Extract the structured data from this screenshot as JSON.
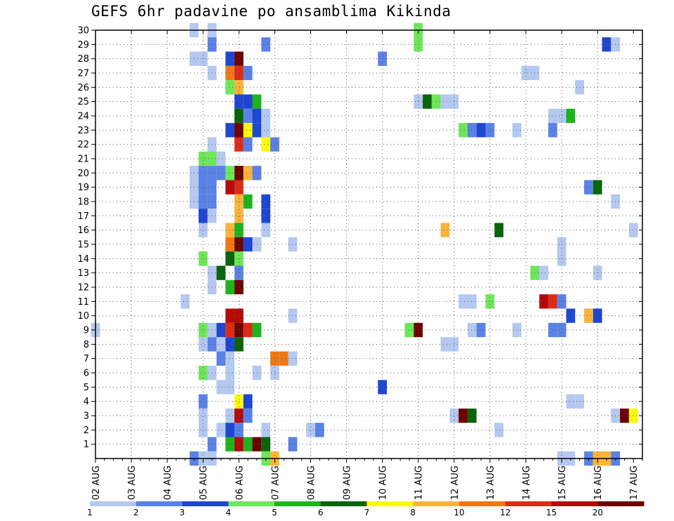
{
  "chart_data": {
    "type": "heatmap",
    "title": "GEFS 6hr padavine po ansamblima Kikinda",
    "x_tick_labels": [
      "02 AUG",
      "03 AUG",
      "04 AUG",
      "05 AUG",
      "06 AUG",
      "07 AUG",
      "08 AUG",
      "09 AUG",
      "10 AUG",
      "11 AUG",
      "12 AUG",
      "13 AUG",
      "14 AUG",
      "15 AUG",
      "16 AUG",
      "17 AUG"
    ],
    "y_tick_labels": [
      "1",
      "2",
      "3",
      "4",
      "5",
      "6",
      "7",
      "8",
      "9",
      "10",
      "11",
      "12",
      "13",
      "14",
      "15",
      "16",
      "17",
      "18",
      "19",
      "20",
      "21",
      "22",
      "23",
      "24",
      "25",
      "26",
      "27",
      "28",
      "29",
      "30"
    ],
    "x_axis": "time step (6-hourly, 4 per day) from 02 AUG",
    "y_axis": "ensemble member (0 to 30)",
    "steps_per_day": 4,
    "xlim": [
      0,
      61
    ],
    "ylim": [
      0,
      30
    ],
    "grid": true,
    "colorbar": {
      "colors": [
        "#b4c8f0",
        "#5a82e6",
        "#1e46d2",
        "#6ee65a",
        "#1eb41e",
        "#0a640a",
        "#fafa0a",
        "#fab43c",
        "#f07814",
        "#dc2d14",
        "#b40a0a",
        "#6e0000"
      ],
      "boundary_labels": [
        "1",
        "2",
        "3",
        "4",
        "5",
        "6",
        "7",
        "8",
        "10",
        "12",
        "15",
        "20"
      ]
    },
    "cells_legend": "each cell: [time step, member, colour class index 0-11]",
    "cells": [
      [
        11,
        30,
        0
      ],
      [
        13,
        30,
        0
      ],
      [
        36,
        30,
        3
      ],
      [
        13,
        29,
        1
      ],
      [
        19,
        29,
        1
      ],
      [
        36,
        29,
        3
      ],
      [
        57,
        29,
        2
      ],
      [
        58,
        29,
        0
      ],
      [
        11,
        28,
        0
      ],
      [
        12,
        28,
        0
      ],
      [
        15,
        28,
        2
      ],
      [
        16,
        28,
        11
      ],
      [
        32,
        28,
        1
      ],
      [
        13,
        27,
        0
      ],
      [
        15,
        27,
        8
      ],
      [
        16,
        27,
        9
      ],
      [
        17,
        27,
        1
      ],
      [
        48,
        27,
        0
      ],
      [
        49,
        27,
        0
      ],
      [
        15,
        26,
        3
      ],
      [
        16,
        26,
        7
      ],
      [
        54,
        26,
        0
      ],
      [
        16,
        25,
        2
      ],
      [
        17,
        25,
        2
      ],
      [
        18,
        25,
        4
      ],
      [
        36,
        25,
        0
      ],
      [
        37,
        25,
        5
      ],
      [
        38,
        25,
        3
      ],
      [
        39,
        25,
        0
      ],
      [
        40,
        25,
        0
      ],
      [
        16,
        24,
        5
      ],
      [
        17,
        24,
        1
      ],
      [
        18,
        24,
        2
      ],
      [
        19,
        24,
        0
      ],
      [
        51,
        24,
        0
      ],
      [
        52,
        24,
        0
      ],
      [
        53,
        24,
        4
      ],
      [
        15,
        23,
        2
      ],
      [
        16,
        23,
        11
      ],
      [
        17,
        23,
        6
      ],
      [
        18,
        23,
        2
      ],
      [
        19,
        23,
        0
      ],
      [
        41,
        23,
        3
      ],
      [
        42,
        23,
        1
      ],
      [
        43,
        23,
        2
      ],
      [
        44,
        23,
        1
      ],
      [
        47,
        23,
        0
      ],
      [
        51,
        23,
        1
      ],
      [
        13,
        22,
        0
      ],
      [
        16,
        22,
        9
      ],
      [
        17,
        22,
        1
      ],
      [
        19,
        22,
        6
      ],
      [
        20,
        22,
        1
      ],
      [
        12,
        21,
        3
      ],
      [
        13,
        21,
        3
      ],
      [
        14,
        21,
        0
      ],
      [
        11,
        20,
        0
      ],
      [
        12,
        20,
        1
      ],
      [
        13,
        20,
        1
      ],
      [
        14,
        20,
        1
      ],
      [
        15,
        20,
        3
      ],
      [
        16,
        20,
        11
      ],
      [
        17,
        20,
        7
      ],
      [
        18,
        20,
        1
      ],
      [
        11,
        19,
        0
      ],
      [
        12,
        19,
        1
      ],
      [
        13,
        19,
        1
      ],
      [
        15,
        19,
        10
      ],
      [
        16,
        19,
        9
      ],
      [
        55,
        19,
        1
      ],
      [
        56,
        19,
        5
      ],
      [
        11,
        18,
        0
      ],
      [
        12,
        18,
        1
      ],
      [
        13,
        18,
        1
      ],
      [
        16,
        18,
        7
      ],
      [
        17,
        18,
        4
      ],
      [
        19,
        18,
        2
      ],
      [
        58,
        18,
        0
      ],
      [
        12,
        17,
        2
      ],
      [
        13,
        17,
        0
      ],
      [
        16,
        17,
        7
      ],
      [
        19,
        17,
        2
      ],
      [
        12,
        16,
        0
      ],
      [
        15,
        16,
        7
      ],
      [
        16,
        16,
        4
      ],
      [
        19,
        16,
        0
      ],
      [
        39,
        16,
        7
      ],
      [
        45,
        16,
        5
      ],
      [
        60,
        16,
        0
      ],
      [
        15,
        15,
        8
      ],
      [
        16,
        15,
        11
      ],
      [
        17,
        15,
        2
      ],
      [
        18,
        15,
        0
      ],
      [
        22,
        15,
        0
      ],
      [
        52,
        15,
        0
      ],
      [
        12,
        14,
        3
      ],
      [
        15,
        14,
        5
      ],
      [
        16,
        14,
        3
      ],
      [
        52,
        14,
        0
      ],
      [
        13,
        13,
        0
      ],
      [
        14,
        13,
        5
      ],
      [
        16,
        13,
        1
      ],
      [
        49,
        13,
        3
      ],
      [
        50,
        13,
        0
      ],
      [
        56,
        13,
        0
      ],
      [
        13,
        12,
        0
      ],
      [
        15,
        12,
        4
      ],
      [
        16,
        12,
        11
      ],
      [
        10,
        11,
        0
      ],
      [
        41,
        11,
        0
      ],
      [
        42,
        11,
        0
      ],
      [
        44,
        11,
        3
      ],
      [
        50,
        11,
        10
      ],
      [
        51,
        11,
        9
      ],
      [
        52,
        11,
        1
      ],
      [
        15,
        10,
        10
      ],
      [
        16,
        10,
        10
      ],
      [
        22,
        10,
        0
      ],
      [
        53,
        10,
        2
      ],
      [
        55,
        10,
        7
      ],
      [
        56,
        10,
        2
      ],
      [
        0,
        9,
        0
      ],
      [
        12,
        9,
        3
      ],
      [
        13,
        9,
        0
      ],
      [
        14,
        9,
        2
      ],
      [
        15,
        9,
        9
      ],
      [
        16,
        9,
        11
      ],
      [
        17,
        9,
        9
      ],
      [
        18,
        9,
        4
      ],
      [
        35,
        9,
        3
      ],
      [
        36,
        9,
        11
      ],
      [
        42,
        9,
        0
      ],
      [
        43,
        9,
        1
      ],
      [
        47,
        9,
        0
      ],
      [
        51,
        9,
        1
      ],
      [
        52,
        9,
        1
      ],
      [
        12,
        8,
        0
      ],
      [
        13,
        8,
        1
      ],
      [
        14,
        8,
        0
      ],
      [
        15,
        8,
        2
      ],
      [
        16,
        8,
        5
      ],
      [
        39,
        8,
        0
      ],
      [
        40,
        8,
        0
      ],
      [
        14,
        7,
        1
      ],
      [
        15,
        7,
        0
      ],
      [
        20,
        7,
        8
      ],
      [
        21,
        7,
        8
      ],
      [
        22,
        7,
        0
      ],
      [
        12,
        6,
        3
      ],
      [
        13,
        6,
        0
      ],
      [
        15,
        6,
        0
      ],
      [
        18,
        6,
        0
      ],
      [
        20,
        6,
        0
      ],
      [
        14,
        5,
        0
      ],
      [
        15,
        5,
        0
      ],
      [
        32,
        5,
        2
      ],
      [
        12,
        4,
        1
      ],
      [
        16,
        4,
        6
      ],
      [
        17,
        4,
        2
      ],
      [
        53,
        4,
        0
      ],
      [
        54,
        4,
        0
      ],
      [
        12,
        3,
        0
      ],
      [
        15,
        3,
        0
      ],
      [
        16,
        3,
        10
      ],
      [
        17,
        3,
        1
      ],
      [
        40,
        3,
        0
      ],
      [
        41,
        3,
        11
      ],
      [
        42,
        3,
        5
      ],
      [
        58,
        3,
        0
      ],
      [
        59,
        3,
        11
      ],
      [
        60,
        3,
        6
      ],
      [
        12,
        2,
        0
      ],
      [
        14,
        2,
        0
      ],
      [
        15,
        2,
        2
      ],
      [
        16,
        2,
        1
      ],
      [
        19,
        2,
        0
      ],
      [
        24,
        2,
        0
      ],
      [
        25,
        2,
        1
      ],
      [
        45,
        2,
        0
      ],
      [
        13,
        1,
        1
      ],
      [
        15,
        1,
        4
      ],
      [
        16,
        1,
        10
      ],
      [
        17,
        1,
        4
      ],
      [
        18,
        1,
        11
      ],
      [
        19,
        1,
        5
      ],
      [
        22,
        1,
        1
      ],
      [
        11,
        0,
        1
      ],
      [
        12,
        0,
        0
      ],
      [
        13,
        0,
        0
      ],
      [
        19,
        0,
        3
      ],
      [
        20,
        0,
        7
      ],
      [
        52,
        0,
        0
      ],
      [
        53,
        0,
        0
      ],
      [
        55,
        0,
        1
      ],
      [
        56,
        0,
        7
      ],
      [
        57,
        0,
        7
      ],
      [
        58,
        0,
        1
      ]
    ]
  }
}
